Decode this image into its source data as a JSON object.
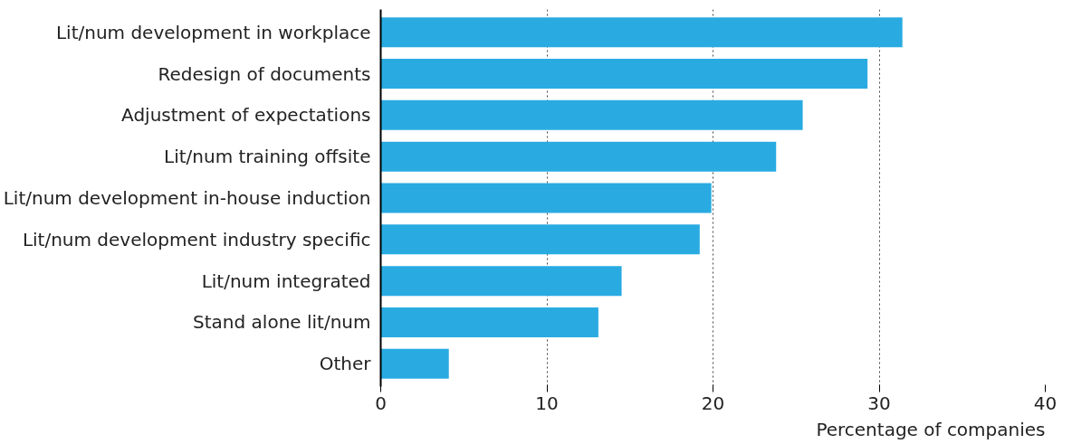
{
  "chart_data": {
    "type": "bar",
    "orientation": "horizontal",
    "xlabel": "Percentage of companies",
    "categories": [
      "Lit/num development in workplace",
      "Redesign of documents",
      "Adjustment of expectations",
      "Lit/num training offsite",
      "Lit/num development in-house induction",
      "Lit/num development industry specific",
      "Lit/num integrated",
      "Stand alone lit/num",
      "Other"
    ],
    "values": [
      31.4,
      29.3,
      25.4,
      23.8,
      19.9,
      19.2,
      14.5,
      13.1,
      4.1
    ],
    "color": "#29abe2",
    "xlim": [
      0,
      40
    ],
    "xticks": [
      0,
      10,
      20,
      30,
      40
    ],
    "grid": "x",
    "line_style": "dotted"
  }
}
